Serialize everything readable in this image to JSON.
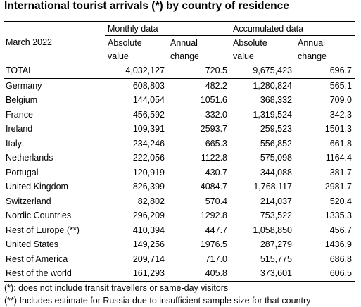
{
  "title": "International tourist arrivals (*) by country of residence",
  "period": "March 2022",
  "groups": {
    "monthly": "Monthly data",
    "accumulated": "Accumulated data"
  },
  "subheaders": {
    "abs_line1": "Absolute",
    "abs_line2": "value",
    "ann_line1": "Annual",
    "ann_line2": "change"
  },
  "total": {
    "label": "TOTAL",
    "m_abs": "4,032,127",
    "m_ann": "720.5",
    "a_abs": "9,675,423",
    "a_ann": "696.7"
  },
  "rows": [
    {
      "label": "Germany",
      "m_abs": "608,803",
      "m_ann": "482.2",
      "a_abs": "1,280,824",
      "a_ann": "565.1"
    },
    {
      "label": "Belgium",
      "m_abs": "144,054",
      "m_ann": "1051.6",
      "a_abs": "368,332",
      "a_ann": "709.0"
    },
    {
      "label": "France",
      "m_abs": "456,592",
      "m_ann": "332.0",
      "a_abs": "1,319,524",
      "a_ann": "342.3"
    },
    {
      "label": "Ireland",
      "m_abs": "109,391",
      "m_ann": "2593.7",
      "a_abs": "259,523",
      "a_ann": "1501.3"
    },
    {
      "label": "Italy",
      "m_abs": "234,246",
      "m_ann": "665.3",
      "a_abs": "556,852",
      "a_ann": "661.8"
    },
    {
      "label": "Netherlands",
      "m_abs": "222,056",
      "m_ann": "1122.8",
      "a_abs": "575,098",
      "a_ann": "1164.4"
    },
    {
      "label": "Portugal",
      "m_abs": "120,919",
      "m_ann": "430.7",
      "a_abs": "344,088",
      "a_ann": "381.7"
    },
    {
      "label": "United Kingdom",
      "m_abs": "826,399",
      "m_ann": "4084.7",
      "a_abs": "1,768,117",
      "a_ann": "2981.7"
    },
    {
      "label": "Switzerland",
      "m_abs": "82,802",
      "m_ann": "570.4",
      "a_abs": "214,037",
      "a_ann": "520.4"
    },
    {
      "label": "Nordic Countries",
      "m_abs": "296,209",
      "m_ann": "1292.8",
      "a_abs": "753,522",
      "a_ann": "1335.3"
    },
    {
      "label": "Rest of Europe (**)",
      "m_abs": "410,394",
      "m_ann": "447.7",
      "a_abs": "1,058,850",
      "a_ann": "456.7"
    },
    {
      "label": "United States",
      "m_abs": "149,256",
      "m_ann": "1976.5",
      "a_abs": "287,279",
      "a_ann": "1436.9"
    },
    {
      "label": "Rest of America",
      "m_abs": "209,714",
      "m_ann": "717.0",
      "a_abs": "515,775",
      "a_ann": "686.8"
    },
    {
      "label": "Rest of the world",
      "m_abs": "161,293",
      "m_ann": "405.8",
      "a_abs": "373,601",
      "a_ann": "606.5"
    }
  ],
  "notes": [
    "(*): does not include transit travellers or same-day visitors",
    "(**) Includes estimate for Russia due to insufficient sample size for that country"
  ]
}
